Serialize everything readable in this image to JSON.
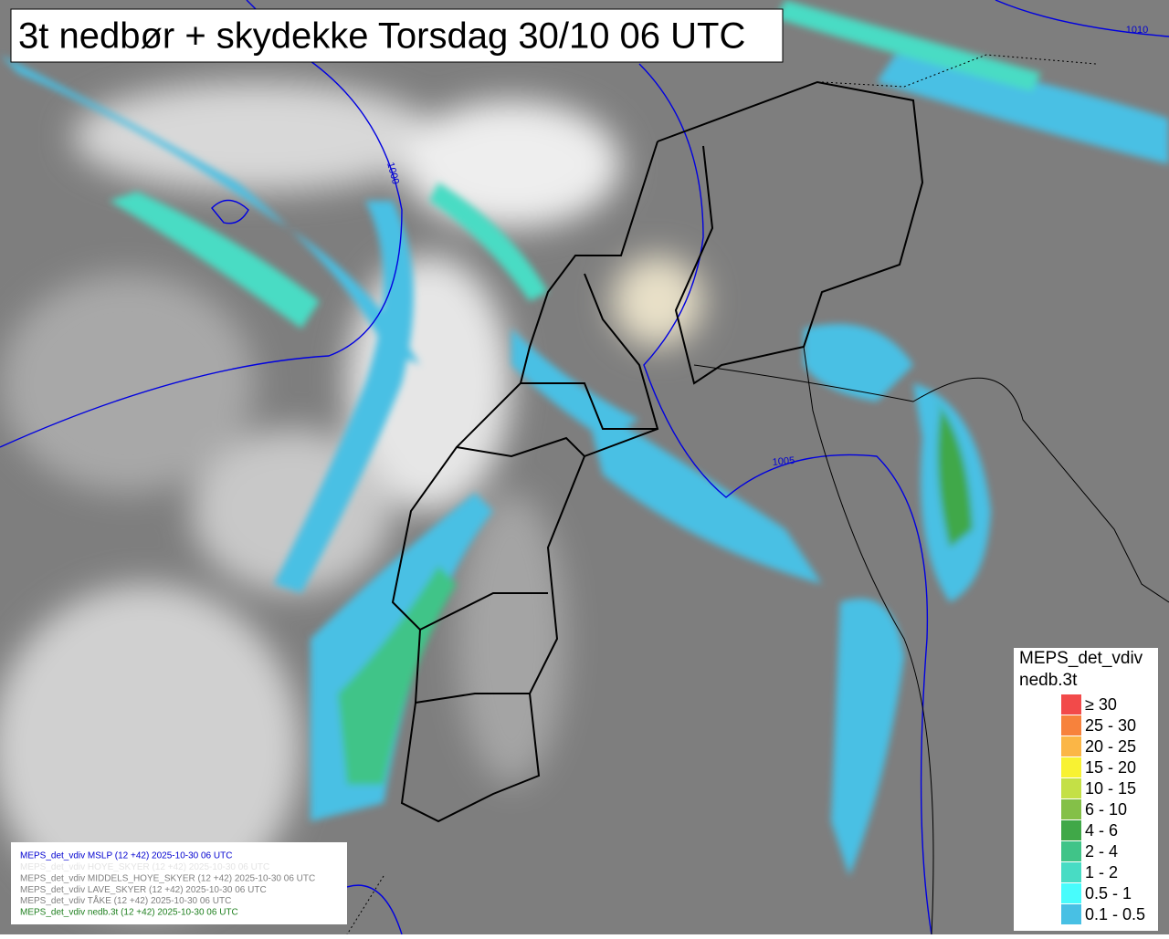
{
  "title": "3t nedbør + skydekke Torsdag 30/10 06 UTC",
  "legend": {
    "title": [
      "MEPS_det_vdiv",
      "nedb.3t"
    ],
    "items": [
      {
        "label": "≥ 30",
        "color": "#f24a4a"
      },
      {
        "label": "25 - 30",
        "color": "#f7823c"
      },
      {
        "label": "20 - 25",
        "color": "#fbb646"
      },
      {
        "label": "15 - 20",
        "color": "#f8f232"
      },
      {
        "label": "10 - 15",
        "color": "#c4e046"
      },
      {
        "label": "6 - 10",
        "color": "#84c048"
      },
      {
        "label": "4 - 6",
        "color": "#40a848"
      },
      {
        "label": "2 - 4",
        "color": "#40c488"
      },
      {
        "label": "1 - 2",
        "color": "#48dcc4"
      },
      {
        "label": "0.5 - 1",
        "color": "#48fcfc"
      },
      {
        "label": "0.1 - 0.5",
        "color": "#48c0e4"
      }
    ]
  },
  "info_lines": [
    {
      "text": "MEPS_det_vdiv MSLP (12 +42) 2025-10-30 06 UTC",
      "color": "#0000d0"
    },
    {
      "text": "MEPS_det_vdiv HOYE_SKYER (12 +42) 2025-10-30 06 UTC",
      "color": "#e4e4e4"
    },
    {
      "text": "MEPS_det_vdiv MIDDELS_HOYE_SKYER (12 +42) 2025-10-30 06 UTC",
      "color": "#808080"
    },
    {
      "text": "MEPS_det_vdiv LAVE_SKYER (12 +42) 2025-10-30 06 UTC",
      "color": "#808080"
    },
    {
      "text": "MEPS_det_vdiv TÅKE (12 +42) 2025-10-30 06 UTC",
      "color": "#808080"
    },
    {
      "text": "MEPS_det_vdiv nedb.3t (12 +42) 2025-10-30 06 UTC",
      "color": "#208020"
    }
  ],
  "isobars": [
    "1000",
    "1005",
    "1010"
  ]
}
